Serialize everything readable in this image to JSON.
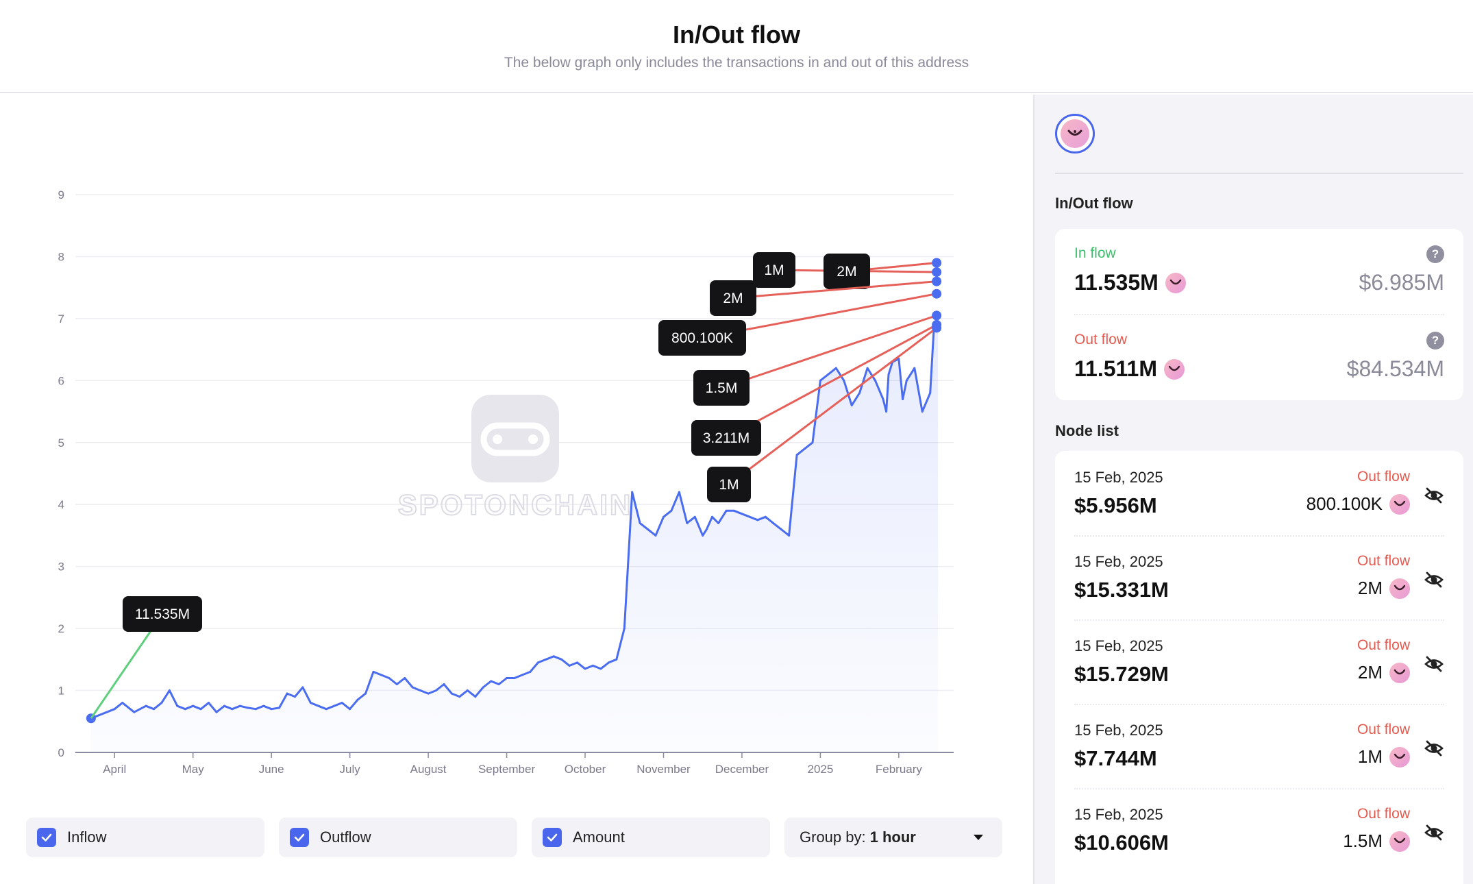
{
  "header": {
    "title": "In/Out flow",
    "subtitle": "The below graph only includes the transactions in and out of this address"
  },
  "watermark": "SPOTONCHAIN",
  "chart_data": {
    "type": "line",
    "x_tick_labels": [
      "April",
      "May",
      "June",
      "July",
      "August",
      "September",
      "October",
      "November",
      "December",
      "2025",
      "February"
    ],
    "ylim": [
      0,
      9
    ],
    "y_ticks": [
      0,
      1,
      2,
      3,
      4,
      5,
      6,
      7,
      8,
      9
    ],
    "series": [
      {
        "color": "#4a6cf0",
        "x": [
          -0.3,
          0,
          0.1,
          0.25,
          0.4,
          0.5,
          0.6,
          0.7,
          0.8,
          0.9,
          1.0,
          1.1,
          1.2,
          1.3,
          1.4,
          1.5,
          1.6,
          1.7,
          1.8,
          1.9,
          2.0,
          2.1,
          2.2,
          2.3,
          2.4,
          2.5,
          2.6,
          2.7,
          2.8,
          2.9,
          3.0,
          3.1,
          3.2,
          3.3,
          3.4,
          3.5,
          3.6,
          3.7,
          3.8,
          3.9,
          4.0,
          4.1,
          4.2,
          4.3,
          4.4,
          4.5,
          4.6,
          4.7,
          4.8,
          4.9,
          5.0,
          5.1,
          5.2,
          5.3,
          5.4,
          5.5,
          5.6,
          5.7,
          5.8,
          5.9,
          6.0,
          6.1,
          6.2,
          6.3,
          6.4,
          6.5,
          6.6,
          6.7,
          6.8,
          6.9,
          7.0,
          7.1,
          7.2,
          7.3,
          7.4,
          7.5,
          7.55,
          7.62,
          7.7,
          7.8,
          7.9,
          8.0,
          8.1,
          8.2,
          8.3,
          8.4,
          8.5,
          8.6,
          8.7,
          8.8,
          8.9,
          9.0,
          9.1,
          9.2,
          9.3,
          9.4,
          9.5,
          9.6,
          9.7,
          9.8,
          9.84,
          9.87,
          9.92,
          10.0,
          10.05,
          10.1,
          10.2,
          10.3,
          10.4,
          10.45,
          10.5
        ],
        "values": [
          0.55,
          0.7,
          0.8,
          0.65,
          0.75,
          0.7,
          0.8,
          1.0,
          0.75,
          0.7,
          0.75,
          0.7,
          0.8,
          0.65,
          0.75,
          0.7,
          0.75,
          0.72,
          0.7,
          0.75,
          0.7,
          0.72,
          0.95,
          0.9,
          1.05,
          0.8,
          0.75,
          0.7,
          0.75,
          0.8,
          0.7,
          0.85,
          0.95,
          1.3,
          1.25,
          1.2,
          1.1,
          1.2,
          1.05,
          1.0,
          0.95,
          1.0,
          1.1,
          0.95,
          0.9,
          1.0,
          0.9,
          1.05,
          1.15,
          1.1,
          1.2,
          1.2,
          1.25,
          1.3,
          1.45,
          1.5,
          1.55,
          1.5,
          1.4,
          1.45,
          1.35,
          1.4,
          1.35,
          1.45,
          1.5,
          2.0,
          4.2,
          3.7,
          3.6,
          3.5,
          3.8,
          3.9,
          4.2,
          3.7,
          3.8,
          3.5,
          3.6,
          3.8,
          3.7,
          3.9,
          3.9,
          3.85,
          3.8,
          3.75,
          3.8,
          3.7,
          3.6,
          3.5,
          4.8,
          4.9,
          5.0,
          6.0,
          6.1,
          6.2,
          6.0,
          5.6,
          5.8,
          6.2,
          6.0,
          5.7,
          5.5,
          6.1,
          6.3,
          6.35,
          5.7,
          6.0,
          6.2,
          5.5,
          5.8,
          6.9,
          7.0
        ]
      }
    ],
    "annotations": [
      {
        "label": "11.535M",
        "kind": "inflow"
      },
      {
        "label": "1M",
        "kind": "outflow"
      },
      {
        "label": "2M",
        "kind": "outflow"
      },
      {
        "label": "2M",
        "kind": "outflow"
      },
      {
        "label": "800.100K",
        "kind": "outflow"
      },
      {
        "label": "1.5M",
        "kind": "outflow"
      },
      {
        "label": "3.211M",
        "kind": "outflow"
      },
      {
        "label": "1M",
        "kind": "outflow"
      }
    ],
    "colors": {
      "line": "#4a6cf0",
      "inflow": "#5fcf7e",
      "outflow": "#e6605a"
    }
  },
  "controls": {
    "inflow": "Inflow",
    "outflow": "Outflow",
    "amount": "Amount",
    "group_prefix": "Group by:",
    "group_value": "1 hour"
  },
  "sidebar": {
    "inout_title": "In/Out flow",
    "in_label": "In flow",
    "in_amount": "11.535M",
    "in_usd": "$6.985M",
    "out_label": "Out flow",
    "out_amount": "11.511M",
    "out_usd": "$84.534M",
    "question_mark": "?",
    "node_list_title": "Node list",
    "nodes": [
      {
        "date": "15 Feb, 2025",
        "usd": "$5.956M",
        "direction": "Out flow",
        "amount": "800.100K"
      },
      {
        "date": "15 Feb, 2025",
        "usd": "$15.331M",
        "direction": "Out flow",
        "amount": "2M"
      },
      {
        "date": "15 Feb, 2025",
        "usd": "$15.729M",
        "direction": "Out flow",
        "amount": "2M"
      },
      {
        "date": "15 Feb, 2025",
        "usd": "$7.744M",
        "direction": "Out flow",
        "amount": "1M"
      },
      {
        "date": "15 Feb, 2025",
        "usd": "$10.606M",
        "direction": "Out flow",
        "amount": "1.5M"
      }
    ]
  }
}
